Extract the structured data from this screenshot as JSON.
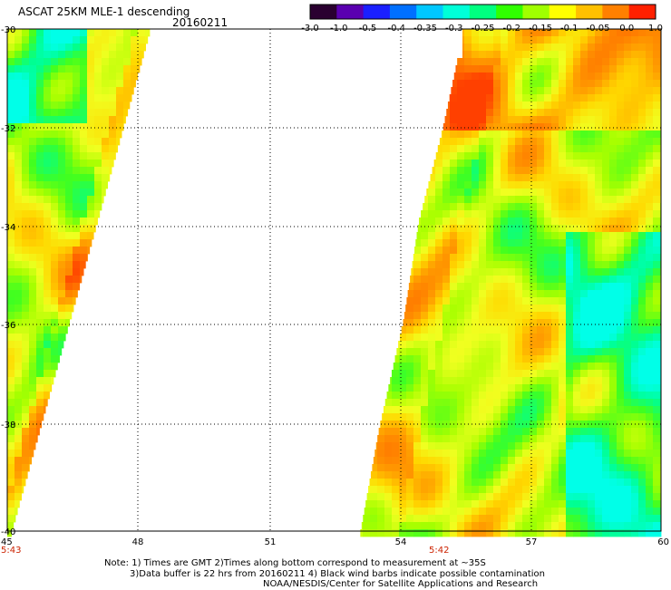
{
  "header": {
    "title": "ASCAT 25KM MLE-1 descending",
    "date": "20160211"
  },
  "colorbar": {
    "tick_labels": [
      "-3.0",
      "-1.0",
      "-0.5",
      "-0.4",
      "-0.35",
      "-0.3",
      "-0.25",
      "-0.2",
      "-0.15",
      "-0.1",
      "-0.05",
      "0.0",
      "1.0"
    ],
    "colors": [
      "#2a0030",
      "#5a00b0",
      "#1a20ff",
      "#0070ff",
      "#00c8ff",
      "#00ffd8",
      "#00ff80",
      "#30ff00",
      "#a0ff00",
      "#ffff00",
      "#ffc000",
      "#ff8000",
      "#ff2000"
    ]
  },
  "axes": {
    "y_tick_labels": [
      "-30",
      "-32",
      "-34",
      "-36",
      "-38",
      "-40"
    ],
    "x_tick_labels": [
      "45",
      "48",
      "51",
      "54",
      "57",
      "60"
    ]
  },
  "time_labels": [
    "5:43",
    "5:42"
  ],
  "notes": {
    "line1": "Note: 1) Times are GMT 2)Times along bottom correspond to measurement at ~35S",
    "line2": "3)Data buffer is 22 hrs from 20160211 4) Black wind barbs indicate possible contamination",
    "line3": "NOAA/NESDIS/Center for Satellite Applications and Research"
  }
}
